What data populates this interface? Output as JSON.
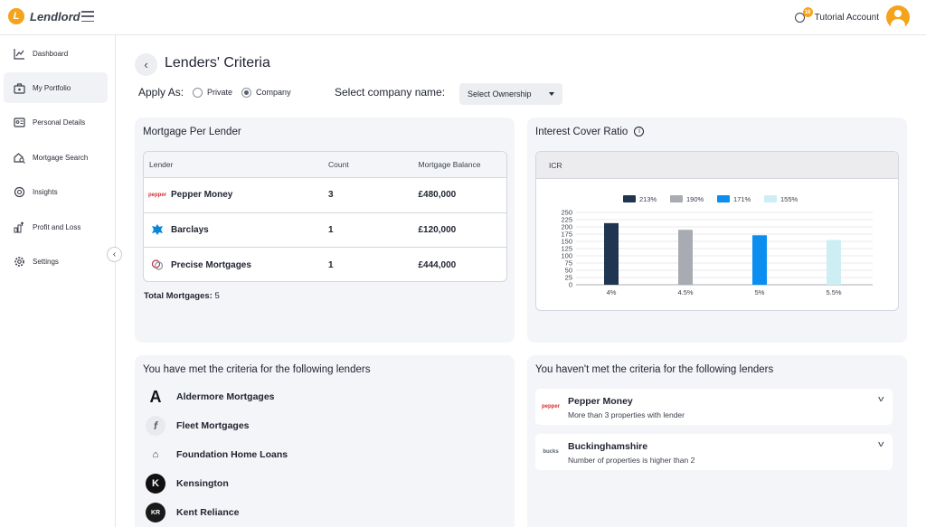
{
  "app": {
    "name": "Lendlord",
    "logo_letter": "L"
  },
  "topbar": {
    "notification_count": "16",
    "account_label": "Tutorial Account"
  },
  "sidebar": {
    "items": [
      {
        "label": "Dashboard",
        "icon": "chart-line-icon"
      },
      {
        "label": "My Portfolio",
        "icon": "portfolio-icon",
        "active": true
      },
      {
        "label": "Personal Details",
        "icon": "id-card-icon"
      },
      {
        "label": "Mortgage Search",
        "icon": "house-search-icon"
      },
      {
        "label": "Insights",
        "icon": "insights-icon"
      },
      {
        "label": "Profit and Loss",
        "icon": "profit-loss-icon"
      },
      {
        "label": "Settings",
        "icon": "gear-icon"
      }
    ]
  },
  "page": {
    "title": "Lenders' Criteria",
    "apply_as_label": "Apply As:",
    "radio_private": "Private",
    "radio_company": "Company",
    "selected_radio": "Company",
    "company_label": "Select company name:",
    "ownership_placeholder": "Select Ownership"
  },
  "mortgage_panel": {
    "title": "Mortgage Per Lender",
    "columns": [
      "Lender",
      "Count",
      "Mortgage Balance"
    ],
    "rows": [
      {
        "lender": "Pepper Money",
        "count": "3",
        "balance": "£480,000",
        "logo_text": "pepper"
      },
      {
        "lender": "Barclays",
        "count": "1",
        "balance": "£120,000",
        "logo_text": ""
      },
      {
        "lender": "Precise Mortgages",
        "count": "1",
        "balance": "£444,000",
        "logo_text": ""
      }
    ],
    "total_label": "Total Mortgages:",
    "total_value": "5"
  },
  "icr_panel": {
    "title": "Interest Cover Ratio",
    "box_header": "ICR"
  },
  "chart_data": {
    "type": "bar",
    "categories": [
      "4%",
      "4.5%",
      "5%",
      "5.5%"
    ],
    "values": [
      213,
      190,
      171,
      155
    ],
    "legend": [
      "213%",
      "190%",
      "171%",
      "155%"
    ],
    "colors": [
      "#1f3550",
      "#a8abb2",
      "#0b8ef0",
      "#cdeef3"
    ],
    "ylim": [
      0,
      250
    ],
    "yticks": [
      0,
      25,
      50,
      75,
      100,
      125,
      150,
      175,
      200,
      225,
      250
    ],
    "grid": true,
    "legend_position": "top"
  },
  "met_panel": {
    "title": "You have met the criteria for the following lenders",
    "items": [
      {
        "name": "Aldermore Mortgages",
        "logo_text": "A"
      },
      {
        "name": "Fleet Mortgages",
        "logo_text": "f"
      },
      {
        "name": "Foundation Home Loans",
        "logo_text": "⌂"
      },
      {
        "name": "Kensington",
        "logo_text": "K"
      },
      {
        "name": "Kent Reliance",
        "logo_text": "KR"
      }
    ]
  },
  "unmet_panel": {
    "title": "You haven't met the criteria for the following lenders",
    "items": [
      {
        "name": "Pepper Money",
        "desc": "More than 3 properties with lender",
        "logo_text": "pepper"
      },
      {
        "name": "Buckinghamshire",
        "desc": "Number of properties is higher than 2",
        "logo_text": "bucks"
      }
    ]
  }
}
